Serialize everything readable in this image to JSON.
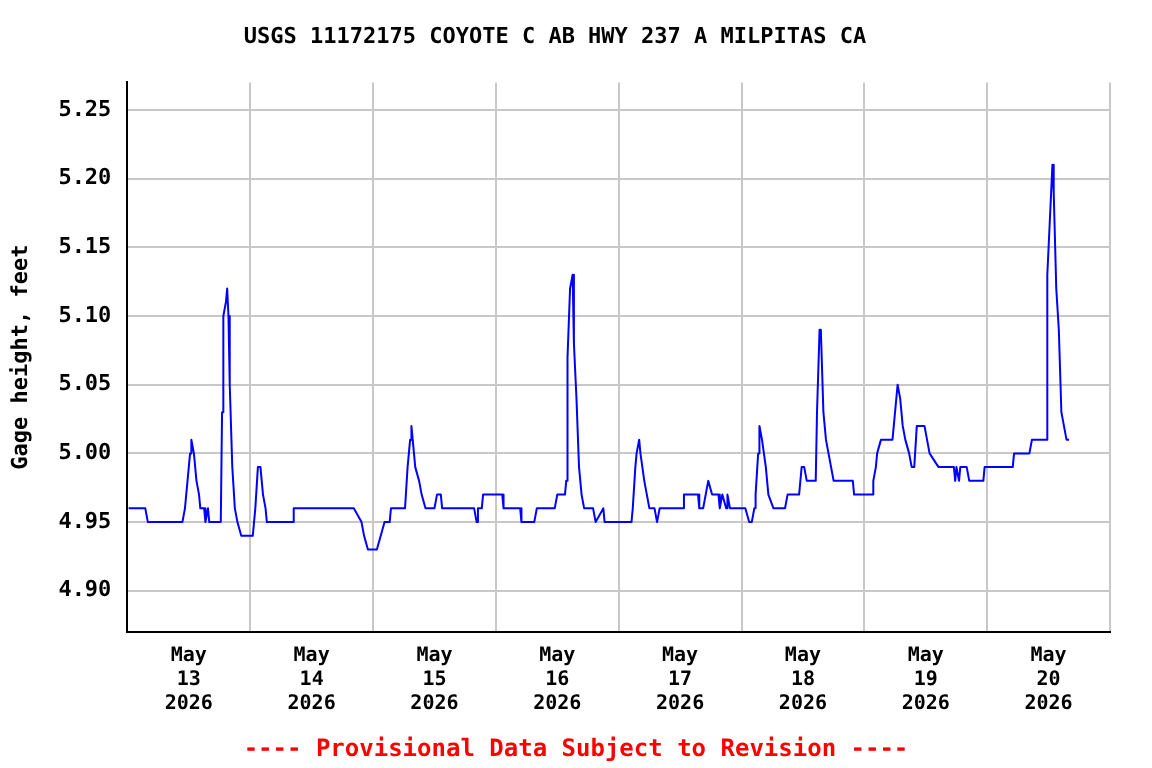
{
  "chart_data": {
    "type": "line",
    "title": "USGS 11172175 COYOTE C AB HWY 237 A MILPITAS CA",
    "ylabel": "Gage height, feet",
    "annotations": [
      "---- Provisional Data Subject to Revision ----"
    ],
    "xlim": [
      "2026-05-13T00:00",
      "2026-05-21T00:00"
    ],
    "xticks": [
      {
        "value": "2026-05-13T00:00",
        "label": null
      },
      {
        "value": "2026-05-13T12:00",
        "label": "May 13 2026"
      },
      {
        "value": "2026-05-14T00:00",
        "label": null
      },
      {
        "value": "2026-05-14T12:00",
        "label": "May 14 2026"
      },
      {
        "value": "2026-05-15T00:00",
        "label": null
      },
      {
        "value": "2026-05-15T12:00",
        "label": "May 15 2026"
      },
      {
        "value": "2026-05-16T00:00",
        "label": null
      },
      {
        "value": "2026-05-16T12:00",
        "label": "May 16 2026"
      },
      {
        "value": "2026-05-17T00:00",
        "label": null
      },
      {
        "value": "2026-05-17T12:00",
        "label": "May 17 2026"
      },
      {
        "value": "2026-05-18T00:00",
        "label": null
      },
      {
        "value": "2026-05-18T12:00",
        "label": "May 18 2026"
      },
      {
        "value": "2026-05-19T00:00",
        "label": null
      },
      {
        "value": "2026-05-19T12:00",
        "label": "May 19 2026"
      },
      {
        "value": "2026-05-20T00:00",
        "label": null
      },
      {
        "value": "2026-05-20T12:00",
        "label": "May 20 2026"
      },
      {
        "value": "2026-05-21T00:00",
        "label": null
      }
    ],
    "ylim": [
      4.87,
      5.27
    ],
    "yticks": [
      {
        "value": 4.9,
        "label": "4.90"
      },
      4.95,
      {
        "value": 5,
        "label": "5.00"
      },
      5.05,
      {
        "value": 5.1,
        "label": "5.10"
      },
      5.15,
      {
        "value": 5.2,
        "label": "5.20"
      },
      5.25
    ],
    "grid": true,
    "legend": false,
    "marker": "none",
    "line_style": "solid",
    "series": [
      {
        "color": "#0000ff",
        "x": [
          "2026-05-13T00:15",
          "2026-05-13T03:30",
          "2026-05-13T04:00",
          "2026-05-13T10:45",
          "2026-05-13T11:15",
          "2026-05-13T11:45",
          "2026-05-13T12:15",
          "2026-05-13T12:30",
          "2026-05-13T13:00",
          "2026-05-13T13:30",
          "2026-05-13T14:00",
          "2026-05-13T14:15",
          "2026-05-13T15:00",
          "2026-05-13T15:15",
          "2026-05-13T15:45",
          "2026-05-13T16:00",
          "2026-05-13T18:15",
          "2026-05-13T18:30",
          "2026-05-13T18:45",
          "2026-05-13T19:15",
          "2026-05-13T19:30",
          "2026-05-13T19:45",
          "2026-05-13T20:00",
          "2026-05-13T20:30",
          "2026-05-13T21:00",
          "2026-05-13T21:30",
          "2026-05-13T22:15",
          "2026-05-14T00:30",
          "2026-05-14T01:00",
          "2026-05-14T01:30",
          "2026-05-14T02:00",
          "2026-05-14T02:30",
          "2026-05-14T03:00",
          "2026-05-14T03:15",
          "2026-05-14T08:15",
          "2026-05-14T08:30",
          "2026-05-14T20:15",
          "2026-05-14T21:45",
          "2026-05-14T22:15",
          "2026-05-14T23:00",
          "2026-05-15T00:45",
          "2026-05-15T01:30",
          "2026-05-15T02:15",
          "2026-05-15T03:15",
          "2026-05-15T03:30",
          "2026-05-15T06:15",
          "2026-05-15T06:45",
          "2026-05-15T07:15",
          "2026-05-15T07:30",
          "2026-05-15T07:45",
          "2026-05-15T08:15",
          "2026-05-15T09:00",
          "2026-05-15T09:30",
          "2026-05-15T10:15",
          "2026-05-15T12:00",
          "2026-05-15T12:30",
          "2026-05-15T13:15",
          "2026-05-15T13:30",
          "2026-05-15T19:45",
          "2026-05-15T20:15",
          "2026-05-15T20:30",
          "2026-05-15T21:15",
          "2026-05-15T21:30",
          "2026-05-16T01:15",
          "2026-05-16T01:30",
          "2026-05-16T04:45",
          "2026-05-16T05:00",
          "2026-05-16T07:30",
          "2026-05-16T08:00",
          "2026-05-16T11:30",
          "2026-05-16T12:00",
          "2026-05-16T13:30",
          "2026-05-16T13:45",
          "2026-05-16T14:00",
          "2026-05-16T14:30",
          "2026-05-16T15:00",
          "2026-05-16T15:15",
          "2026-05-16T15:45",
          "2026-05-16T16:15",
          "2026-05-16T16:45",
          "2026-05-16T17:15",
          "2026-05-16T19:00",
          "2026-05-16T19:30",
          "2026-05-16T21:00",
          "2026-05-16T21:15",
          "2026-05-17T02:30",
          "2026-05-17T02:45",
          "2026-05-17T03:15",
          "2026-05-17T03:30",
          "2026-05-17T04:00",
          "2026-05-17T04:15",
          "2026-05-17T05:00",
          "2026-05-17T05:30",
          "2026-05-17T06:00",
          "2026-05-17T07:00",
          "2026-05-17T07:30",
          "2026-05-17T08:00",
          "2026-05-17T12:30",
          "2026-05-17T12:45",
          "2026-05-17T15:30",
          "2026-05-17T15:45",
          "2026-05-17T16:30",
          "2026-05-17T17:00",
          "2026-05-17T17:30",
          "2026-05-17T18:15",
          "2026-05-17T19:30",
          "2026-05-17T19:45",
          "2026-05-17T20:15",
          "2026-05-17T21:00",
          "2026-05-17T21:15",
          "2026-05-17T21:45",
          "2026-05-18T00:45",
          "2026-05-18T01:30",
          "2026-05-18T02:00",
          "2026-05-18T02:30",
          "2026-05-18T02:45",
          "2026-05-18T03:15",
          "2026-05-18T03:30",
          "2026-05-18T04:00",
          "2026-05-18T04:45",
          "2026-05-18T05:15",
          "2026-05-18T06:15",
          "2026-05-18T08:30",
          "2026-05-18T09:00",
          "2026-05-18T10:15",
          "2026-05-18T11:15",
          "2026-05-18T11:45",
          "2026-05-18T12:15",
          "2026-05-18T12:45",
          "2026-05-18T14:30",
          "2026-05-18T14:45",
          "2026-05-18T15:15",
          "2026-05-18T15:30",
          "2026-05-18T16:00",
          "2026-05-18T16:30",
          "2026-05-18T17:00",
          "2026-05-18T17:30",
          "2026-05-18T18:00",
          "2026-05-18T21:45",
          "2026-05-18T22:00",
          "2026-05-19T01:30",
          "2026-05-19T01:45",
          "2026-05-19T02:15",
          "2026-05-19T02:30",
          "2026-05-19T03:15",
          "2026-05-19T05:30",
          "2026-05-19T06:00",
          "2026-05-19T06:30",
          "2026-05-19T07:00",
          "2026-05-19T07:30",
          "2026-05-19T08:00",
          "2026-05-19T08:45",
          "2026-05-19T09:15",
          "2026-05-19T09:45",
          "2026-05-19T10:15",
          "2026-05-19T11:45",
          "2026-05-19T12:15",
          "2026-05-19T12:45",
          "2026-05-19T14:30",
          "2026-05-19T17:30",
          "2026-05-19T17:45",
          "2026-05-19T18:00",
          "2026-05-19T18:30",
          "2026-05-19T18:45",
          "2026-05-19T20:00",
          "2026-05-19T20:30",
          "2026-05-19T23:15",
          "2026-05-19T23:30",
          "2026-05-20T05:00",
          "2026-05-20T05:15",
          "2026-05-20T08:15",
          "2026-05-20T08:45",
          "2026-05-20T11:30",
          "2026-05-20T11:45",
          "2026-05-20T12:15",
          "2026-05-20T12:45",
          "2026-05-20T13:00",
          "2026-05-20T13:30",
          "2026-05-20T14:00",
          "2026-05-20T14:30",
          "2026-05-20T15:00",
          "2026-05-20T15:30",
          "2026-05-20T16:00"
        ],
        "values": [
          4.96,
          4.96,
          4.95,
          4.95,
          4.96,
          4.98,
          5.0,
          5.01,
          5.0,
          4.98,
          4.97,
          4.96,
          4.96,
          4.95,
          4.96,
          4.95,
          4.95,
          5.03,
          5.1,
          5.11,
          5.12,
          5.1,
          5.05,
          4.99,
          4.96,
          4.95,
          4.94,
          4.94,
          4.96,
          4.99,
          4.99,
          4.97,
          4.96,
          4.95,
          4.95,
          4.96,
          4.96,
          4.95,
          4.94,
          4.93,
          4.93,
          4.94,
          4.95,
          4.95,
          4.96,
          4.96,
          4.99,
          5.01,
          5.02,
          5.01,
          4.99,
          4.98,
          4.97,
          4.96,
          4.96,
          4.97,
          4.97,
          4.96,
          4.96,
          4.95,
          4.96,
          4.96,
          4.97,
          4.97,
          4.96,
          4.96,
          4.95,
          4.95,
          4.96,
          4.96,
          4.97,
          4.97,
          4.98,
          5.07,
          5.12,
          5.13,
          5.08,
          5.04,
          4.99,
          4.97,
          4.96,
          4.96,
          4.95,
          4.96,
          4.95,
          4.95,
          4.96,
          4.99,
          5.0,
          5.01,
          5.0,
          4.98,
          4.97,
          4.96,
          4.96,
          4.95,
          4.96,
          4.96,
          4.97,
          4.97,
          4.96,
          4.96,
          4.97,
          4.98,
          4.97,
          4.97,
          4.96,
          4.97,
          4.96,
          4.97,
          4.96,
          4.96,
          4.95,
          4.95,
          4.96,
          4.97,
          5.0,
          5.02,
          5.01,
          4.99,
          4.97,
          4.96,
          4.96,
          4.97,
          4.97,
          4.97,
          4.99,
          4.99,
          4.98,
          4.98,
          5.03,
          5.09,
          5.09,
          5.03,
          5.01,
          5.0,
          4.99,
          4.98,
          4.98,
          4.97,
          4.97,
          4.98,
          4.99,
          5.0,
          5.01,
          5.01,
          5.03,
          5.05,
          5.04,
          5.02,
          5.01,
          5.0,
          4.99,
          4.99,
          5.02,
          5.02,
          5.01,
          5.0,
          4.99,
          4.99,
          4.98,
          4.99,
          4.98,
          4.99,
          4.99,
          4.98,
          4.98,
          4.99,
          4.99,
          5.0,
          5.0,
          5.01,
          5.01,
          5.13,
          5.17,
          5.21,
          5.19,
          5.12,
          5.09,
          5.03,
          5.02,
          5.01,
          5.01
        ]
      }
    ]
  }
}
